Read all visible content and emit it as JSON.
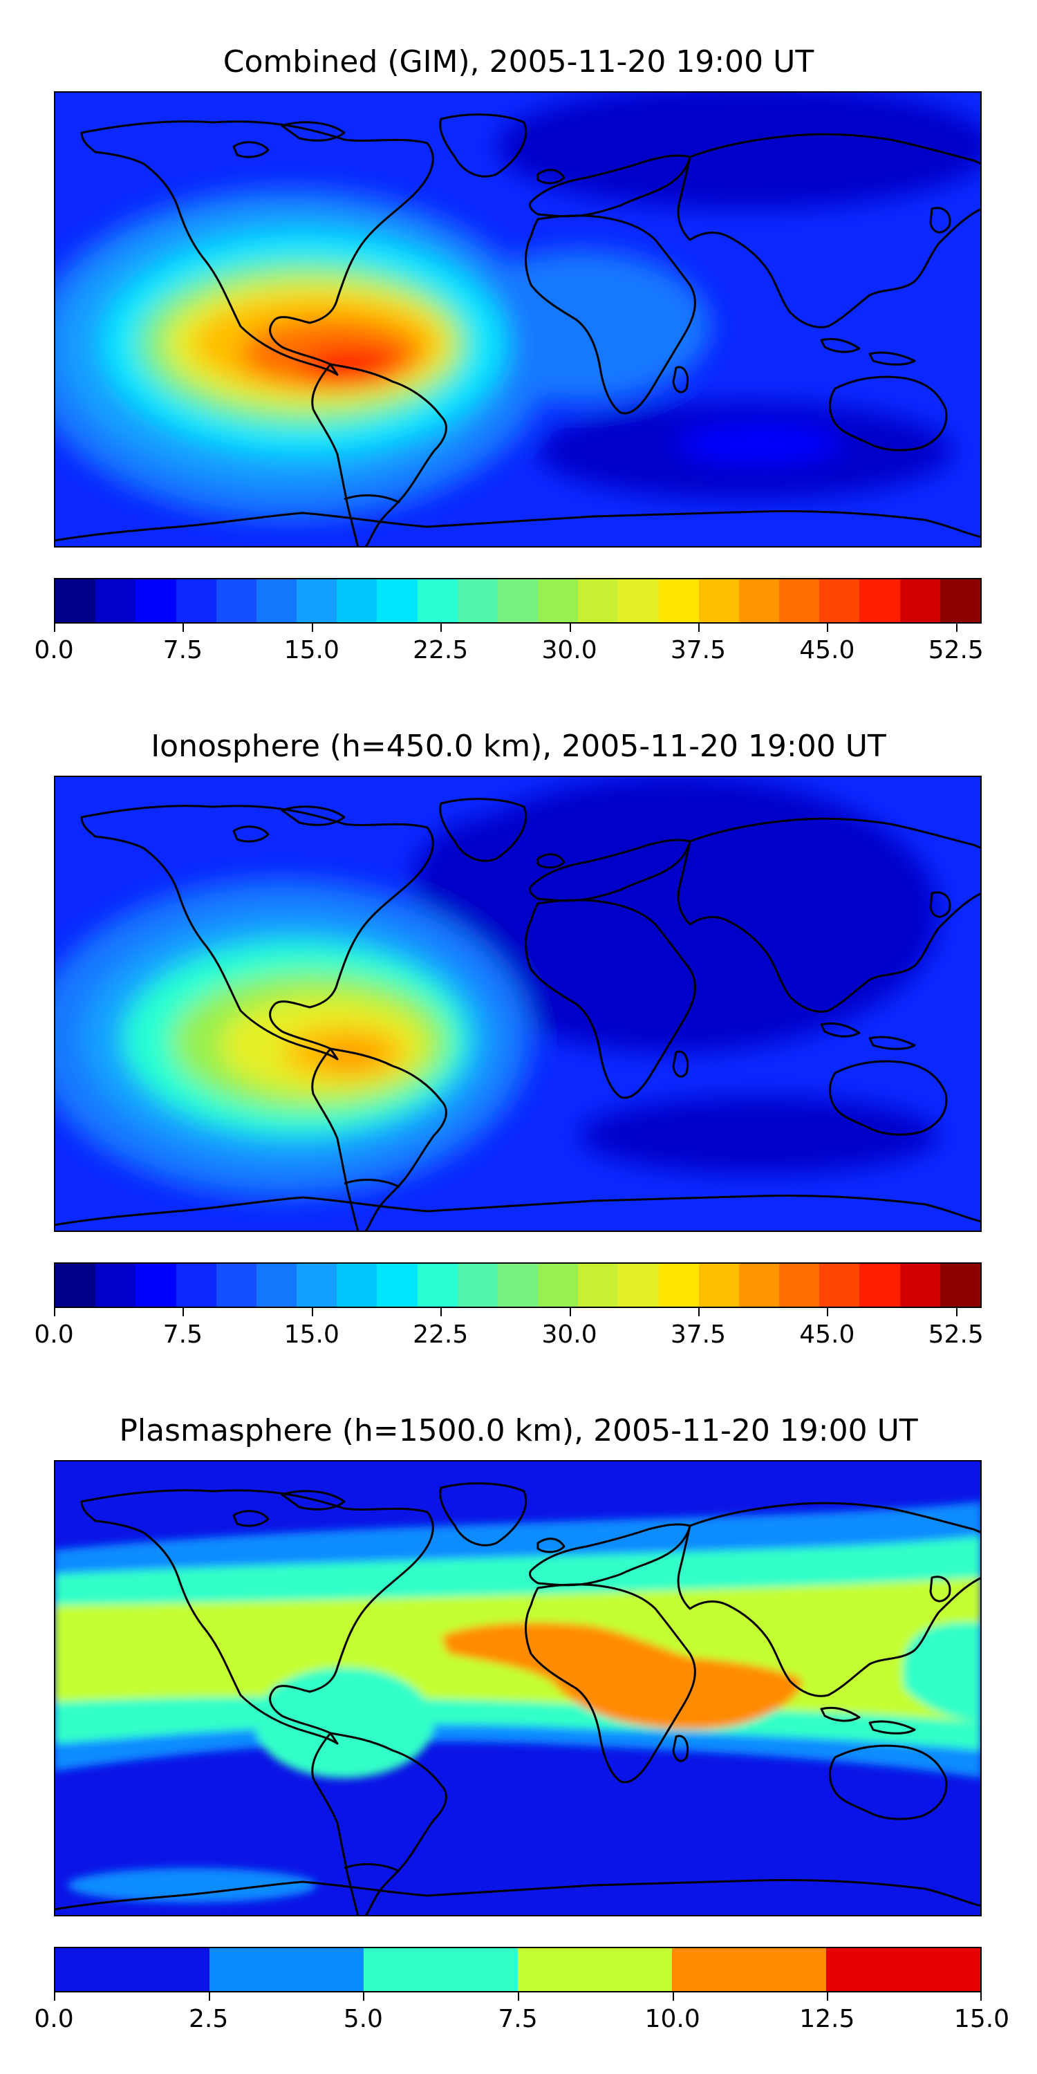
{
  "panels": [
    {
      "title": "Combined (GIM), 2005-11-20 19:00 UT",
      "colorbar": {
        "colors": [
          "#00008b",
          "#0000c8",
          "#0000ff",
          "#0a28ff",
          "#1450ff",
          "#1478ff",
          "#14a0ff",
          "#00c8ff",
          "#00e6ff",
          "#28ffd2",
          "#50f5aa",
          "#78f082",
          "#96f050",
          "#c8f032",
          "#e6f028",
          "#ffe600",
          "#ffbe00",
          "#ff9600",
          "#ff6e00",
          "#ff4600",
          "#ff1e00",
          "#d20000",
          "#8c0000"
        ],
        "ticks": [
          "0.0",
          "7.5",
          "15.0",
          "22.5",
          "30.0",
          "37.5",
          "45.0",
          "52.5"
        ],
        "range": [
          0,
          54
        ]
      }
    },
    {
      "title": "Ionosphere  (h=450.0 km), 2005-11-20 19:00 UT",
      "colorbar": {
        "colors": [
          "#00008b",
          "#0000c8",
          "#0000ff",
          "#0a28ff",
          "#1450ff",
          "#1478ff",
          "#14a0ff",
          "#00c8ff",
          "#00e6ff",
          "#28ffd2",
          "#50f5aa",
          "#78f082",
          "#96f050",
          "#c8f032",
          "#e6f028",
          "#ffe600",
          "#ffbe00",
          "#ff9600",
          "#ff6e00",
          "#ff4600",
          "#ff1e00",
          "#d20000",
          "#8c0000"
        ],
        "ticks": [
          "0.0",
          "7.5",
          "15.0",
          "22.5",
          "30.0",
          "37.5",
          "45.0",
          "52.5"
        ],
        "range": [
          0,
          54
        ]
      }
    },
    {
      "title": "Plasmasphere (h=1500.0 km), 2005-11-20 19:00 UT",
      "colorbar": {
        "colors": [
          "#0a14e6",
          "#0a8cff",
          "#32ffc8",
          "#c3ff32",
          "#ff8c00",
          "#e60000"
        ],
        "ticks": [
          "0.0",
          "2.5",
          "5.0",
          "7.5",
          "10.0",
          "12.5",
          "15.0"
        ],
        "range": [
          0,
          15
        ]
      }
    }
  ]
}
